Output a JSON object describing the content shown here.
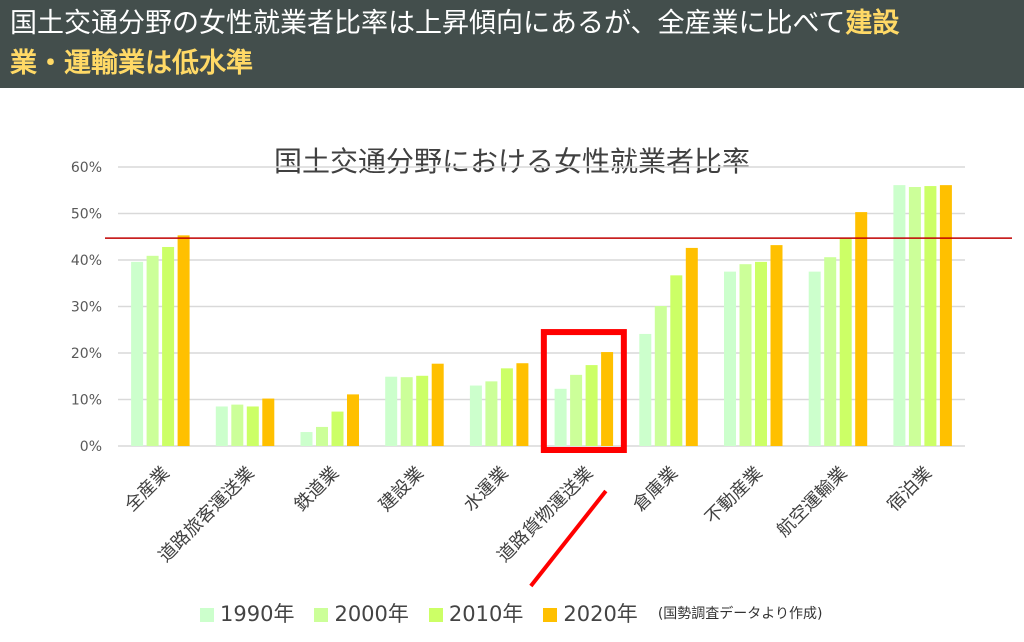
{
  "header": {
    "title_plain": "国土交通分野の女性就業者比率は上昇傾向にあるが、全産業に比べて",
    "title_highlight1": "建設",
    "title_highlight2": "業・運輸業は低水準"
  },
  "chart_data": {
    "type": "bar",
    "title": "国土交通分野における女性就業者比率",
    "categories": [
      "全産業",
      "道路旅客運送業",
      "鉄道業",
      "建設業",
      "水運業",
      "道路貨物運送業",
      "倉庫業",
      "不動産業",
      "航空運輸業",
      "宿泊業"
    ],
    "series": [
      {
        "name": "1990年",
        "color": "#ccffcc",
        "values": [
          39.6,
          8.5,
          3.0,
          14.9,
          13.0,
          12.3,
          24.1,
          37.5,
          37.5,
          56.1
        ]
      },
      {
        "name": "2000年",
        "color": "#ccff99",
        "values": [
          40.9,
          8.9,
          4.1,
          14.8,
          13.9,
          15.3,
          30.1,
          39.1,
          40.6,
          55.7
        ]
      },
      {
        "name": "2010年",
        "color": "#ccff66",
        "values": [
          42.8,
          8.5,
          7.4,
          15.1,
          16.7,
          17.4,
          36.7,
          39.6,
          44.8,
          55.9
        ]
      },
      {
        "name": "2020年",
        "color": "#ffc000",
        "values": [
          45.3,
          10.2,
          11.1,
          17.7,
          17.8,
          20.2,
          42.6,
          43.2,
          50.3,
          56.1
        ]
      }
    ],
    "yticks": [
      "0%",
      "10%",
      "20%",
      "30%",
      "40%",
      "50%",
      "60%"
    ],
    "ylim": [
      0,
      60
    ],
    "grid": true,
    "reference_line": {
      "value": 44.7,
      "color": "#c00000"
    },
    "highlight_category": "道路貨物運送業",
    "highlight_color": "#ff0000",
    "legend_position": "bottom",
    "source_note": "(国勢調査データより作成)"
  }
}
